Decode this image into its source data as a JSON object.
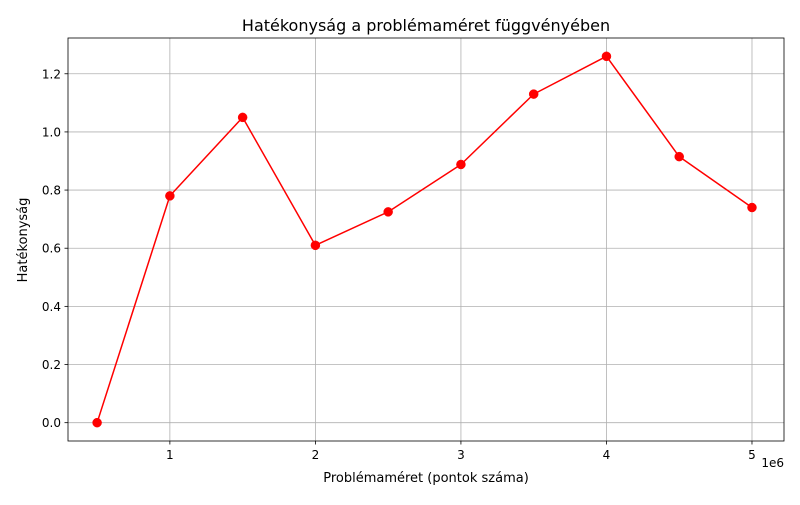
{
  "chart_data": {
    "type": "line",
    "title": "Hatékonyság a problémaméret függvényében",
    "xlabel": "Problémaméret (pontok száma)",
    "ylabel": "Hatékonyság",
    "x_offset_label": "1e6",
    "x_scale_factor": 1000000,
    "xlim": [
      300000,
      5220000
    ],
    "ylim": [
      -0.063,
      1.323
    ],
    "x_ticks": [
      1000000,
      2000000,
      3000000,
      4000000,
      5000000
    ],
    "x_tick_labels": [
      "1",
      "2",
      "3",
      "4",
      "5"
    ],
    "y_ticks": [
      0.0,
      0.2,
      0.4,
      0.6,
      0.8,
      1.0,
      1.2
    ],
    "y_tick_labels": [
      "0.0",
      "0.2",
      "0.4",
      "0.6",
      "0.8",
      "1.0",
      "1.2"
    ],
    "grid": true,
    "series": [
      {
        "color": "#ff0000",
        "marker": "circle",
        "x": [
          500000,
          1000000,
          1500000,
          2000000,
          2500000,
          3000000,
          3500000,
          4000000,
          4500000,
          5000000
        ],
        "y": [
          0.0,
          0.78,
          1.05,
          0.61,
          0.725,
          0.888,
          1.13,
          1.26,
          0.915,
          0.74
        ]
      }
    ]
  }
}
